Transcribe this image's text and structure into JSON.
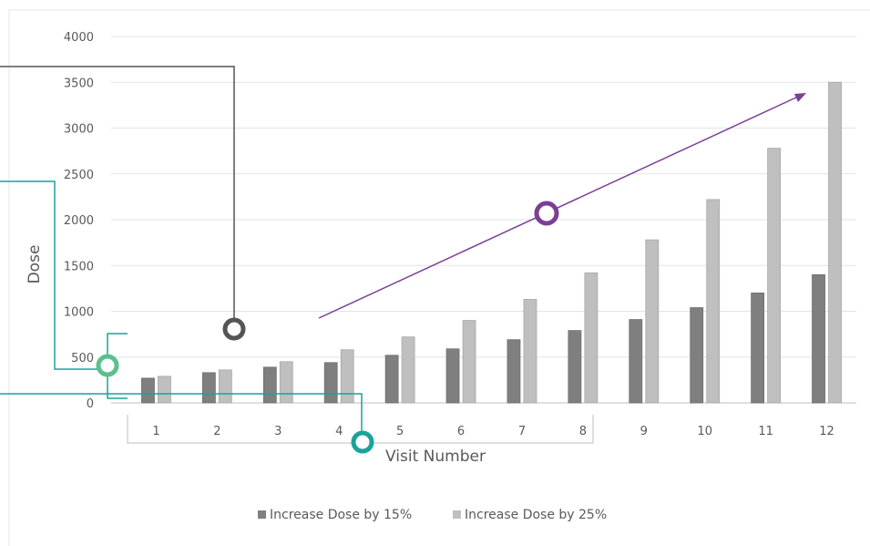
{
  "chart_data": {
    "type": "bar",
    "categories": [
      "1",
      "2",
      "3",
      "4",
      "5",
      "6",
      "7",
      "8",
      "9",
      "10",
      "11",
      "12"
    ],
    "series": [
      {
        "name": "Increase Dose by 15%",
        "color": "#7f7f7f",
        "values": [
          270,
          330,
          390,
          440,
          520,
          590,
          690,
          790,
          910,
          1040,
          1200,
          1400
        ]
      },
      {
        "name": "Increase Dose by 25%",
        "color": "#bfbfbf",
        "values": [
          290,
          360,
          450,
          580,
          720,
          900,
          1130,
          1420,
          1780,
          2220,
          2780,
          3500
        ]
      }
    ],
    "yticks": [
      "0",
      "500",
      "1000",
      "1500",
      "2000",
      "2500",
      "3000",
      "3500",
      "4000"
    ],
    "ylim": [
      0,
      4000
    ],
    "xlabel": "Visit Number",
    "ylabel": "Dose",
    "grid": true,
    "legend_position": "bottom"
  },
  "annotations": {
    "trend_arrow_color": "#7a3f96",
    "callout_dark_color": "#555555",
    "callout_teal_color": "#1aa39a",
    "callout_light_teal_color": "#5cc08a",
    "callout_purple_color": "#7a3f96"
  }
}
